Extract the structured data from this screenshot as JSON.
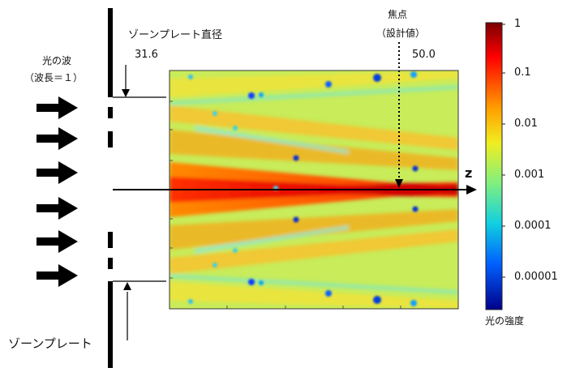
{
  "labels": {
    "light_wave_line1": "光の波",
    "light_wave_line2": "（波長＝１）",
    "zone_plate_diameter": "ゾーンプレート直径",
    "diameter_value": "31.6",
    "focal_point_line1": "焦点",
    "focal_point_line2": "（設計値）",
    "focal_value": "50.0",
    "z_axis": "z",
    "zone_plate": "ゾーンプレート",
    "light_intensity": "光の強度"
  },
  "colorbar": {
    "ticks": [
      "1",
      "0.1",
      "0.01",
      "0.001",
      "0.0001",
      "0.00001"
    ]
  },
  "colors": {
    "field_background": "#c8ec5a",
    "focus_core": "#d40000",
    "arrows": "#000000"
  }
}
